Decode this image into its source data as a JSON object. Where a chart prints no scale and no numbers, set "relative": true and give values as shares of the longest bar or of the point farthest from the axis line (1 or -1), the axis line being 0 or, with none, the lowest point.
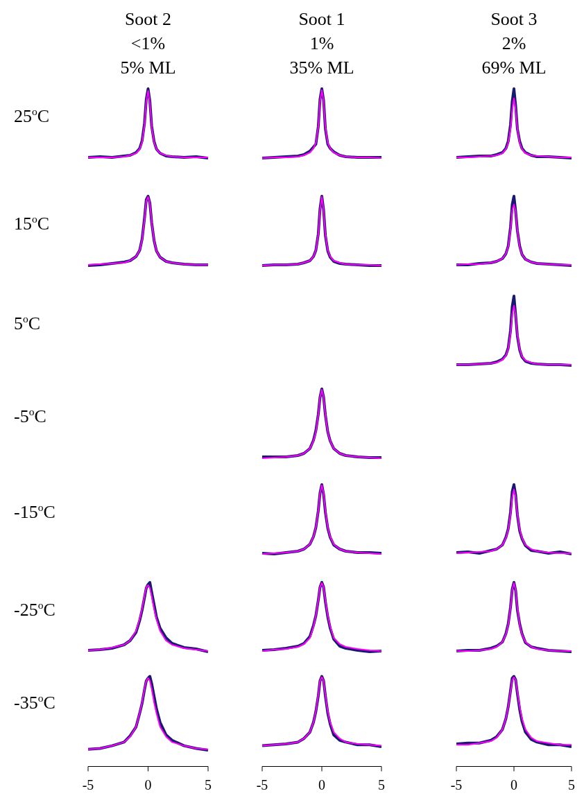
{
  "chart_data": [
    {
      "type": "line",
      "title": "Soot 2",
      "subtitle": "<1%",
      "annotations": [
        "5% ML"
      ],
      "ylabel": "25$^{o}$C",
      "relative": true,
      "xlim": [
        -5,
        5
      ],
      "tick_labels": false,
      "x": [
        -5,
        -4,
        -3,
        -2,
        -1.5,
        -1,
        -0.7,
        -0.5,
        -0.3,
        -0.15,
        0,
        0.15,
        0.3,
        0.5,
        0.7,
        1,
        1.5,
        2,
        3,
        4,
        5
      ],
      "series": [
        {
          "color": "#191970",
          "values": [
            0.01,
            0.02,
            0.01,
            0.03,
            0.04,
            0.08,
            0.14,
            0.25,
            0.5,
            0.85,
            1,
            0.82,
            0.46,
            0.24,
            0.13,
            0.07,
            0.03,
            0.02,
            0.01,
            0.02,
            0
          ]
        },
        {
          "color": "#ff00ff",
          "values": [
            0.01,
            0.01,
            0.01,
            0.02,
            0.04,
            0.07,
            0.13,
            0.23,
            0.47,
            0.82,
            0.97,
            0.8,
            0.45,
            0.23,
            0.13,
            0.07,
            0.04,
            0.02,
            0.01,
            0.01,
            0.01
          ]
        }
      ]
    },
    {
      "type": "line",
      "title": "Soot 1",
      "subtitle": "1%",
      "annotations": [
        "35% ML"
      ],
      "relative": true,
      "xlim": [
        -5,
        5
      ],
      "tick_labels": false,
      "x": [
        -5,
        -4,
        -3,
        -2,
        -1.5,
        -1,
        -0.7,
        -0.5,
        -0.3,
        -0.15,
        0,
        0.15,
        0.3,
        0.5,
        0.7,
        1,
        1.5,
        2,
        3,
        4,
        5
      ],
      "series": [
        {
          "color": "#191970",
          "values": [
            0,
            0.01,
            0.02,
            0.03,
            0.05,
            0.1,
            0.16,
            0.2,
            0.45,
            0.85,
            1,
            0.83,
            0.42,
            0.2,
            0.14,
            0.09,
            0.04,
            0.02,
            0.01,
            0.01,
            0.01
          ]
        },
        {
          "color": "#ff00ff",
          "values": [
            0,
            0.01,
            0.01,
            0.02,
            0.04,
            0.08,
            0.14,
            0.22,
            0.44,
            0.82,
            0.98,
            0.82,
            0.44,
            0.22,
            0.14,
            0.08,
            0.04,
            0.02,
            0.01,
            0.01,
            0
          ]
        }
      ]
    },
    {
      "type": "line",
      "title": "Soot 3",
      "subtitle": "2%",
      "annotations": [
        "69% ML"
      ],
      "relative": true,
      "xlim": [
        -5,
        5
      ],
      "tick_labels": false,
      "x": [
        -5,
        -4,
        -3,
        -2,
        -1.5,
        -1,
        -0.7,
        -0.5,
        -0.3,
        -0.15,
        0,
        0.15,
        0.3,
        0.5,
        0.7,
        1,
        1.5,
        2,
        3,
        4,
        5
      ],
      "series": [
        {
          "color": "#191970",
          "values": [
            0.01,
            0.02,
            0.03,
            0.03,
            0.05,
            0.08,
            0.14,
            0.24,
            0.48,
            0.82,
            1,
            0.75,
            0.42,
            0.24,
            0.14,
            0.08,
            0.04,
            0.02,
            0.02,
            0.01,
            0
          ]
        },
        {
          "color": "#ff00ff",
          "values": [
            0.01,
            0.01,
            0.02,
            0.03,
            0.04,
            0.07,
            0.13,
            0.22,
            0.42,
            0.7,
            0.86,
            0.7,
            0.42,
            0.22,
            0.13,
            0.07,
            0.04,
            0.03,
            0.02,
            0.01,
            0.01
          ]
        }
      ]
    },
    {
      "type": "line",
      "ylabel": "15$^{o}$C",
      "relative": true,
      "xlim": [
        -5,
        5
      ],
      "tick_labels": false,
      "x": [
        -5,
        -4,
        -3,
        -2,
        -1.5,
        -1,
        -0.7,
        -0.5,
        -0.3,
        -0.15,
        0,
        0.15,
        0.3,
        0.5,
        0.7,
        1,
        1.5,
        2,
        3,
        4,
        5
      ],
      "series": [
        {
          "color": "#191970",
          "values": [
            0,
            0.01,
            0.03,
            0.05,
            0.07,
            0.13,
            0.22,
            0.38,
            0.68,
            0.95,
            1,
            0.9,
            0.62,
            0.36,
            0.21,
            0.12,
            0.06,
            0.04,
            0.02,
            0.01,
            0.01
          ]
        },
        {
          "color": "#ff00ff",
          "values": [
            0.01,
            0.02,
            0.03,
            0.04,
            0.07,
            0.13,
            0.22,
            0.37,
            0.66,
            0.93,
            0.99,
            0.9,
            0.62,
            0.36,
            0.21,
            0.12,
            0.06,
            0.04,
            0.02,
            0.01,
            0.01
          ]
        }
      ]
    },
    {
      "type": "line",
      "relative": true,
      "xlim": [
        -5,
        5
      ],
      "tick_labels": false,
      "x": [
        -5,
        -4,
        -3,
        -2,
        -1.5,
        -1,
        -0.7,
        -0.5,
        -0.3,
        -0.15,
        0,
        0.15,
        0.3,
        0.5,
        0.7,
        1,
        1.5,
        2,
        3,
        4,
        5
      ],
      "series": [
        {
          "color": "#191970",
          "values": [
            0,
            0.01,
            0.01,
            0.02,
            0.04,
            0.07,
            0.13,
            0.22,
            0.45,
            0.82,
            1,
            0.8,
            0.43,
            0.21,
            0.12,
            0.06,
            0.03,
            0.02,
            0.01,
            0,
            0
          ]
        },
        {
          "color": "#ff00ff",
          "values": [
            0,
            0.01,
            0.01,
            0.02,
            0.04,
            0.07,
            0.13,
            0.22,
            0.44,
            0.8,
            0.99,
            0.8,
            0.44,
            0.22,
            0.13,
            0.07,
            0.04,
            0.02,
            0.01,
            0.01,
            0
          ]
        }
      ]
    },
    {
      "type": "line",
      "relative": true,
      "xlim": [
        -5,
        5
      ],
      "tick_labels": false,
      "x": [
        -5,
        -4,
        -3,
        -2,
        -1.5,
        -1,
        -0.7,
        -0.5,
        -0.3,
        -0.15,
        0,
        0.15,
        0.3,
        0.5,
        0.7,
        1,
        1.5,
        2,
        3,
        4,
        5
      ],
      "series": [
        {
          "color": "#191970",
          "values": [
            0.01,
            0.01,
            0.03,
            0.04,
            0.06,
            0.1,
            0.17,
            0.28,
            0.55,
            0.88,
            1,
            0.78,
            0.5,
            0.28,
            0.16,
            0.09,
            0.05,
            0.03,
            0.02,
            0.01,
            0
          ]
        },
        {
          "color": "#ff00ff",
          "values": [
            0.01,
            0.02,
            0.02,
            0.04,
            0.06,
            0.1,
            0.17,
            0.27,
            0.52,
            0.8,
            0.88,
            0.78,
            0.5,
            0.27,
            0.16,
            0.09,
            0.05,
            0.03,
            0.02,
            0.01,
            0.01
          ]
        }
      ]
    },
    {
      "type": "line",
      "ylabel": "5$^{o}$C",
      "relative": true,
      "xlim": [
        -5,
        5
      ],
      "tick_labels": false,
      "x": [
        -5,
        -4,
        -3,
        -2,
        -1.5,
        -1,
        -0.7,
        -0.5,
        -0.3,
        -0.15,
        0,
        0.15,
        0.3,
        0.5,
        0.7,
        1,
        1.5,
        2,
        3,
        4,
        5
      ],
      "series": [
        {
          "color": "#191970",
          "values": [
            0.01,
            0.01,
            0.02,
            0.03,
            0.05,
            0.09,
            0.15,
            0.25,
            0.5,
            0.85,
            1,
            0.72,
            0.42,
            0.22,
            0.12,
            0.06,
            0.03,
            0.02,
            0.01,
            0.01,
            0
          ]
        },
        {
          "color": "#ff00ff",
          "values": [
            0.01,
            0.01,
            0.02,
            0.03,
            0.04,
            0.08,
            0.14,
            0.24,
            0.46,
            0.74,
            0.86,
            0.72,
            0.44,
            0.23,
            0.13,
            0.07,
            0.04,
            0.02,
            0.01,
            0.01,
            0.01
          ]
        }
      ]
    },
    {
      "type": "line",
      "ylabel": "-5$^{o}$C",
      "relative": true,
      "xlim": [
        -5,
        5
      ],
      "tick_labels": false,
      "x": [
        -5,
        -4,
        -3,
        -2,
        -1.5,
        -1,
        -0.7,
        -0.5,
        -0.3,
        -0.15,
        0,
        0.15,
        0.3,
        0.5,
        0.7,
        1,
        1.5,
        2,
        3,
        4,
        5
      ],
      "series": [
        {
          "color": "#191970",
          "values": [
            0.02,
            0.02,
            0.02,
            0.04,
            0.07,
            0.14,
            0.26,
            0.4,
            0.63,
            0.88,
            1,
            0.88,
            0.62,
            0.38,
            0.25,
            0.14,
            0.07,
            0.04,
            0.02,
            0.01,
            0.01
          ]
        },
        {
          "color": "#ff00ff",
          "values": [
            0,
            0.01,
            0.02,
            0.04,
            0.07,
            0.14,
            0.25,
            0.38,
            0.62,
            0.88,
            0.99,
            0.88,
            0.62,
            0.38,
            0.25,
            0.14,
            0.07,
            0.04,
            0.02,
            0.01,
            0
          ]
        }
      ]
    },
    {
      "type": "line",
      "ylabel": "-15$^{o}$C",
      "relative": true,
      "xlim": [
        -5,
        5
      ],
      "tick_labels": false,
      "x": [
        -5,
        -4,
        -3,
        -2,
        -1.5,
        -1,
        -0.7,
        -0.5,
        -0.3,
        -0.15,
        0,
        0.15,
        0.3,
        0.5,
        0.7,
        1,
        1.5,
        2,
        3,
        4,
        5
      ],
      "series": [
        {
          "color": "#191970",
          "values": [
            0.01,
            0,
            0.02,
            0.04,
            0.07,
            0.14,
            0.25,
            0.38,
            0.62,
            0.88,
            1,
            0.86,
            0.6,
            0.37,
            0.24,
            0.13,
            0.07,
            0.04,
            0.02,
            0.02,
            0.01
          ]
        },
        {
          "color": "#ff00ff",
          "values": [
            0,
            0.01,
            0.02,
            0.04,
            0.07,
            0.14,
            0.25,
            0.38,
            0.62,
            0.88,
            0.99,
            0.88,
            0.62,
            0.38,
            0.25,
            0.14,
            0.07,
            0.04,
            0.02,
            0.01,
            0
          ]
        }
      ]
    },
    {
      "type": "line",
      "relative": true,
      "xlim": [
        -5,
        5
      ],
      "tick_labels": false,
      "x": [
        -5,
        -4,
        -3,
        -2,
        -1.5,
        -1,
        -0.7,
        -0.5,
        -0.3,
        -0.15,
        0,
        0.15,
        0.3,
        0.5,
        0.7,
        1,
        1.5,
        2,
        3,
        4,
        5
      ],
      "series": [
        {
          "color": "#191970",
          "values": [
            0.02,
            0.03,
            0.01,
            0.05,
            0.07,
            0.13,
            0.24,
            0.36,
            0.6,
            0.9,
            1,
            0.85,
            0.56,
            0.33,
            0.22,
            0.12,
            0.05,
            0.04,
            0.01,
            0.03,
            0
          ]
        },
        {
          "color": "#ff00ff",
          "values": [
            0.01,
            0.02,
            0.03,
            0.04,
            0.07,
            0.13,
            0.23,
            0.35,
            0.57,
            0.82,
            0.93,
            0.82,
            0.57,
            0.35,
            0.23,
            0.13,
            0.07,
            0.04,
            0.02,
            0.01,
            0.01
          ]
        }
      ]
    },
    {
      "type": "line",
      "ylabel": "-25$^{o}$C",
      "relative": true,
      "xlim": [
        -5,
        5
      ],
      "tick_labels": false,
      "x": [
        -5,
        -4,
        -3,
        -2,
        -1.5,
        -1,
        -0.7,
        -0.5,
        -0.3,
        -0.15,
        0,
        0.15,
        0.3,
        0.5,
        0.7,
        1,
        1.5,
        2,
        3,
        4,
        5
      ],
      "series": [
        {
          "color": "#191970",
          "values": [
            0.02,
            0.03,
            0.05,
            0.1,
            0.16,
            0.28,
            0.45,
            0.6,
            0.78,
            0.92,
            0.97,
            1,
            0.86,
            0.68,
            0.5,
            0.34,
            0.2,
            0.12,
            0.06,
            0.04,
            0
          ]
        },
        {
          "color": "#ff00ff",
          "values": [
            0.02,
            0.03,
            0.06,
            0.1,
            0.16,
            0.3,
            0.47,
            0.62,
            0.8,
            0.93,
            0.96,
            0.92,
            0.8,
            0.62,
            0.47,
            0.3,
            0.16,
            0.1,
            0.05,
            0.03,
            0.01
          ]
        }
      ]
    },
    {
      "type": "line",
      "relative": true,
      "xlim": [
        -5,
        5
      ],
      "tick_labels": false,
      "x": [
        -5,
        -4,
        -3,
        -2,
        -1.5,
        -1,
        -0.7,
        -0.5,
        -0.3,
        -0.15,
        0,
        0.15,
        0.3,
        0.5,
        0.7,
        1,
        1.5,
        2,
        3,
        4,
        5
      ],
      "series": [
        {
          "color": "#191970",
          "values": [
            0.02,
            0.03,
            0.05,
            0.08,
            0.12,
            0.22,
            0.38,
            0.52,
            0.74,
            0.93,
            1,
            0.93,
            0.72,
            0.5,
            0.34,
            0.18,
            0.08,
            0.05,
            0.02,
            0,
            0.01
          ]
        },
        {
          "color": "#ff00ff",
          "values": [
            0.01,
            0.03,
            0.04,
            0.07,
            0.11,
            0.2,
            0.36,
            0.52,
            0.74,
            0.93,
            0.99,
            0.93,
            0.74,
            0.52,
            0.36,
            0.2,
            0.11,
            0.07,
            0.04,
            0.02,
            0.01
          ]
        }
      ]
    },
    {
      "type": "line",
      "relative": true,
      "xlim": [
        -5,
        5
      ],
      "tick_labels": false,
      "x": [
        -5,
        -4,
        -3,
        -2,
        -1.5,
        -1,
        -0.7,
        -0.5,
        -0.3,
        -0.15,
        0,
        0.15,
        0.3,
        0.5,
        0.7,
        1,
        1.5,
        2,
        3,
        4,
        5
      ],
      "series": [
        {
          "color": "#191970",
          "values": [
            0.01,
            0.02,
            0.02,
            0.05,
            0.08,
            0.14,
            0.26,
            0.4,
            0.64,
            0.9,
            1,
            0.88,
            0.6,
            0.4,
            0.26,
            0.13,
            0.07,
            0.05,
            0.02,
            0.01,
            0
          ]
        },
        {
          "color": "#ff00ff",
          "values": [
            0.01,
            0.01,
            0.02,
            0.04,
            0.07,
            0.14,
            0.25,
            0.39,
            0.63,
            0.89,
            0.99,
            0.89,
            0.63,
            0.39,
            0.25,
            0.14,
            0.07,
            0.04,
            0.02,
            0.01,
            0.01
          ]
        }
      ]
    },
    {
      "type": "line",
      "ylabel": "-35$^{o}$C",
      "relative": true,
      "xlim": [
        -5,
        5
      ],
      "xticks": [
        -5,
        0,
        5
      ],
      "tick_labels": "x",
      "x": [
        -5,
        -4,
        -3,
        -2,
        -1.5,
        -1,
        -0.7,
        -0.5,
        -0.3,
        -0.15,
        0,
        0.15,
        0.3,
        0.5,
        0.7,
        1,
        1.5,
        2,
        3,
        4,
        5
      ],
      "series": [
        {
          "color": "#191970",
          "values": [
            0.19,
            0.2,
            0.23,
            0.27,
            0.34,
            0.44,
            0.59,
            0.7,
            0.85,
            0.95,
            0.98,
            1,
            0.92,
            0.78,
            0.64,
            0.49,
            0.35,
            0.29,
            0.23,
            0.2,
            0.18
          ]
        },
        {
          "color": "#ff00ff",
          "values": [
            0.19,
            0.2,
            0.23,
            0.27,
            0.33,
            0.44,
            0.59,
            0.71,
            0.86,
            0.95,
            0.98,
            0.95,
            0.86,
            0.71,
            0.59,
            0.44,
            0.33,
            0.27,
            0.23,
            0.2,
            0.19
          ]
        }
      ]
    },
    {
      "type": "line",
      "relative": true,
      "xlim": [
        -5,
        5
      ],
      "xticks": [
        -5,
        0,
        5
      ],
      "tick_labels": "x",
      "x": [
        -5,
        -4,
        -3,
        -2,
        -1.5,
        -1,
        -0.7,
        -0.5,
        -0.3,
        -0.15,
        0,
        0.15,
        0.3,
        0.5,
        0.7,
        1,
        1.5,
        2,
        3,
        4,
        5
      ],
      "series": [
        {
          "color": "#191970",
          "values": [
            0.23,
            0.24,
            0.25,
            0.27,
            0.31,
            0.38,
            0.49,
            0.61,
            0.78,
            0.95,
            1,
            0.95,
            0.78,
            0.59,
            0.47,
            0.35,
            0.29,
            0.27,
            0.24,
            0.24,
            0.22
          ]
        },
        {
          "color": "#ff00ff",
          "values": [
            0.23,
            0.24,
            0.25,
            0.27,
            0.31,
            0.38,
            0.49,
            0.61,
            0.79,
            0.95,
            0.99,
            0.95,
            0.79,
            0.61,
            0.49,
            0.38,
            0.31,
            0.27,
            0.25,
            0.24,
            0.23
          ]
        }
      ]
    },
    {
      "type": "line",
      "relative": true,
      "xlim": [
        -5,
        5
      ],
      "xticks": [
        -5,
        0,
        5
      ],
      "tick_labels": "x",
      "x": [
        -5,
        -4,
        -3,
        -2,
        -1.5,
        -1,
        -0.7,
        -0.5,
        -0.3,
        -0.15,
        0,
        0.15,
        0.3,
        0.5,
        0.7,
        1,
        1.5,
        2,
        3,
        4,
        5
      ],
      "series": [
        {
          "color": "#191970",
          "values": [
            0.25,
            0.26,
            0.26,
            0.29,
            0.33,
            0.41,
            0.53,
            0.66,
            0.84,
            0.98,
            1,
            0.96,
            0.81,
            0.63,
            0.5,
            0.38,
            0.3,
            0.27,
            0.24,
            0.24,
            0.22
          ]
        },
        {
          "color": "#ff00ff",
          "values": [
            0.24,
            0.24,
            0.26,
            0.28,
            0.32,
            0.41,
            0.53,
            0.66,
            0.83,
            0.96,
            0.99,
            0.96,
            0.83,
            0.66,
            0.53,
            0.41,
            0.32,
            0.28,
            0.26,
            0.24,
            0.24
          ]
        }
      ]
    }
  ]
}
